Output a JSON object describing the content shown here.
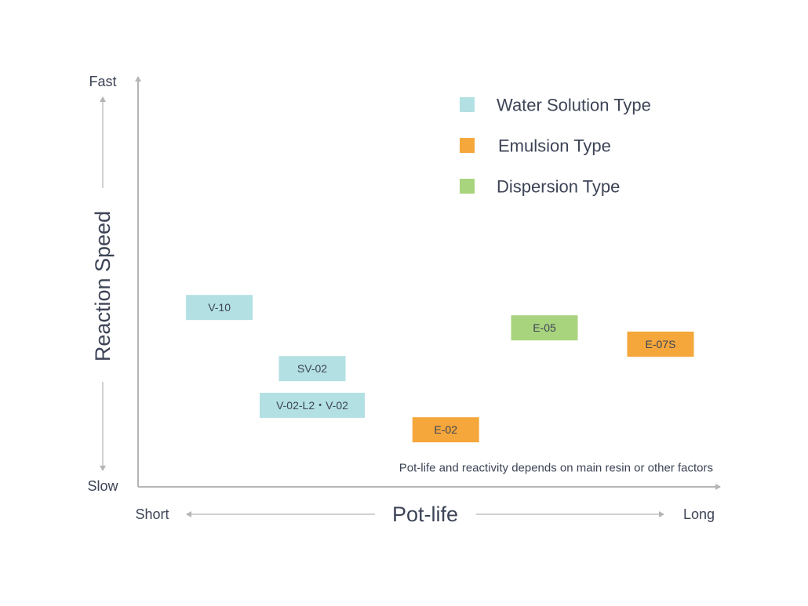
{
  "chart_data": {
    "type": "scatter",
    "title": "",
    "xlabel": "Pot-life",
    "ylabel": "Reaction Speed",
    "x_scale": "relative (0 = Short, 100 = Long)",
    "y_scale": "relative (0 = Slow, 100 = Fast)",
    "xlim": [
      0,
      100
    ],
    "ylim": [
      0,
      100
    ],
    "x_ticks": {
      "min": "Short",
      "max": "Long"
    },
    "y_ticks": {
      "min": "Slow",
      "max": "Fast"
    },
    "legend": {
      "position": "top-right",
      "entries": [
        {
          "name": "Water Solution Type",
          "color": "#b3e0e3"
        },
        {
          "name": "Emulsion Type",
          "color": "#f5a73b"
        },
        {
          "name": "Dispersion Type",
          "color": "#a8d47e"
        }
      ]
    },
    "annotation": "Pot-life and reactivity depends on main resin or other factors",
    "points": [
      {
        "label": "V-10",
        "series": "Water Solution Type",
        "x": 14,
        "y": 44
      },
      {
        "label": "SV-02",
        "series": "Water Solution Type",
        "x": 30,
        "y": 29
      },
      {
        "label": "V-02-L2・V-02",
        "series": "Water Solution Type",
        "x": 30,
        "y": 20
      },
      {
        "label": "E-02",
        "series": "Emulsion Type",
        "x": 53,
        "y": 14
      },
      {
        "label": "E-05",
        "series": "Dispersion Type",
        "x": 70,
        "y": 39
      },
      {
        "label": "E-07S",
        "series": "Emulsion Type",
        "x": 90,
        "y": 35
      }
    ]
  }
}
